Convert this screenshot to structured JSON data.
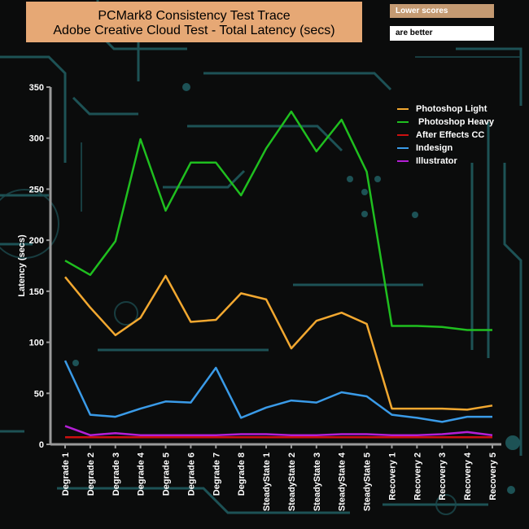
{
  "title_line1": "PCMark8 Consistency Test Trace",
  "title_line2": "Adobe Creative Cloud Test -  Total Latency (secs)",
  "note": {
    "line1": "Lower scores",
    "line2": "are better"
  },
  "colors": {
    "background": "#0b0c0c",
    "circuit": "#1f5a5e",
    "title_box": "#e6a875",
    "axis": "#ffffff"
  },
  "chart_data": {
    "type": "line",
    "ylabel": "Latency (secs)",
    "xlabel": "",
    "ylim": [
      0,
      350
    ],
    "yticks": [
      0,
      50,
      100,
      150,
      200,
      250,
      300,
      350
    ],
    "grid": false,
    "legend_position": "top-right",
    "categories": [
      "Degrade 1",
      "Degrade 2",
      "Degrade 3",
      "Degrade 4",
      "Degrade 5",
      "Degrade 6",
      "Degrade 7",
      "Degrade 8",
      "SteadyState 1",
      "SteadyState 2",
      "SteadyState 3",
      "SteadyState 4",
      "SteadyState 5",
      "Recovery 1",
      "Recovery 2",
      "Recovery 3",
      "Recovery 4",
      "Recovery 5"
    ],
    "series": [
      {
        "name": "Photoshop Light",
        "color": "#f2a830",
        "values": [
          164,
          134,
          107,
          124,
          165,
          120,
          122,
          148,
          142,
          94,
          121,
          129,
          118,
          35,
          35,
          35,
          34,
          38
        ]
      },
      {
        "name": " Photoshop Heavy",
        "color": "#1fbf1f",
        "values": [
          180,
          166,
          199,
          299,
          229,
          276,
          276,
          244,
          290,
          326,
          287,
          318,
          267,
          116,
          116,
          115,
          112,
          112
        ]
      },
      {
        "name": "After Effects CC",
        "color": "#cc1010",
        "values": [
          7,
          7,
          7,
          7,
          7,
          7,
          7,
          7,
          7,
          7,
          7,
          7,
          7,
          7,
          7,
          7,
          7,
          7
        ]
      },
      {
        "name": "Indesign",
        "color": "#3a9be8",
        "values": [
          82,
          29,
          27,
          35,
          42,
          41,
          75,
          26,
          36,
          43,
          41,
          51,
          47,
          29,
          26,
          22,
          27,
          27
        ]
      },
      {
        "name": "Illustrator",
        "color": "#b41fd6",
        "values": [
          18,
          9,
          11,
          9,
          9,
          9,
          9,
          10,
          10,
          9,
          9,
          10,
          10,
          9,
          9,
          10,
          12,
          9
        ]
      }
    ]
  }
}
